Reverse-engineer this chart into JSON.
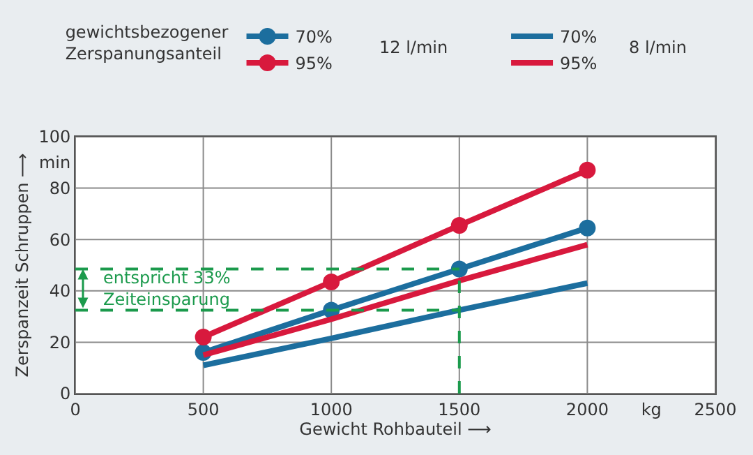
{
  "chart_data": {
    "type": "line",
    "xlabel": "Gewicht Rohbauteil ⟶",
    "ylabel": "Zerspanzeit Schruppen ⟶",
    "legend_title": "gewichtsbezogener\nZerspanungsanteil",
    "x": [
      500,
      1000,
      1500,
      2000
    ],
    "series": [
      {
        "name": "70%",
        "color": "#1c6e9e",
        "values": [
          16,
          32.5,
          48.5,
          64.5
        ],
        "marker": "circle"
      },
      {
        "name": "95%",
        "color": "#d8193d",
        "values": [
          22,
          43.5,
          65.5,
          87
        ],
        "marker": "circle"
      },
      {
        "name": "70%",
        "color": "#1c6e9e",
        "values": [
          11,
          21.5,
          32.5,
          43
        ],
        "marker": "none"
      },
      {
        "name": "95%",
        "color": "#d8193d",
        "values": [
          15,
          29,
          44,
          58
        ],
        "marker": "none"
      }
    ],
    "xlim": [
      0,
      2500
    ],
    "xticks": [
      0,
      500,
      1000,
      1500,
      2000,
      {
        "value": 2250,
        "label": "kg"
      },
      2500
    ],
    "ylim": [
      0,
      100
    ],
    "yticks": [
      0,
      20,
      40,
      60,
      80,
      {
        "value": 90,
        "label": "min"
      },
      100
    ],
    "grid": true,
    "legend": "top",
    "line_style": "solid",
    "ref_lines": [
      {
        "axis": "y",
        "value": 48.5,
        "color": "#1b9a4c",
        "line_style": "dashed"
      },
      {
        "axis": "y",
        "value": 32.5,
        "color": "#1b9a4c",
        "line_style": "dashed"
      },
      {
        "axis": "x",
        "value": 1500,
        "color": "#1b9a4c",
        "line_style": "dashed"
      }
    ],
    "annotations": [
      "12 l/min",
      "8 l/min",
      {
        "text": "entspricht 33%\nZeiteinsparung",
        "x": 30,
        "y": 48.5
      }
    ]
  }
}
